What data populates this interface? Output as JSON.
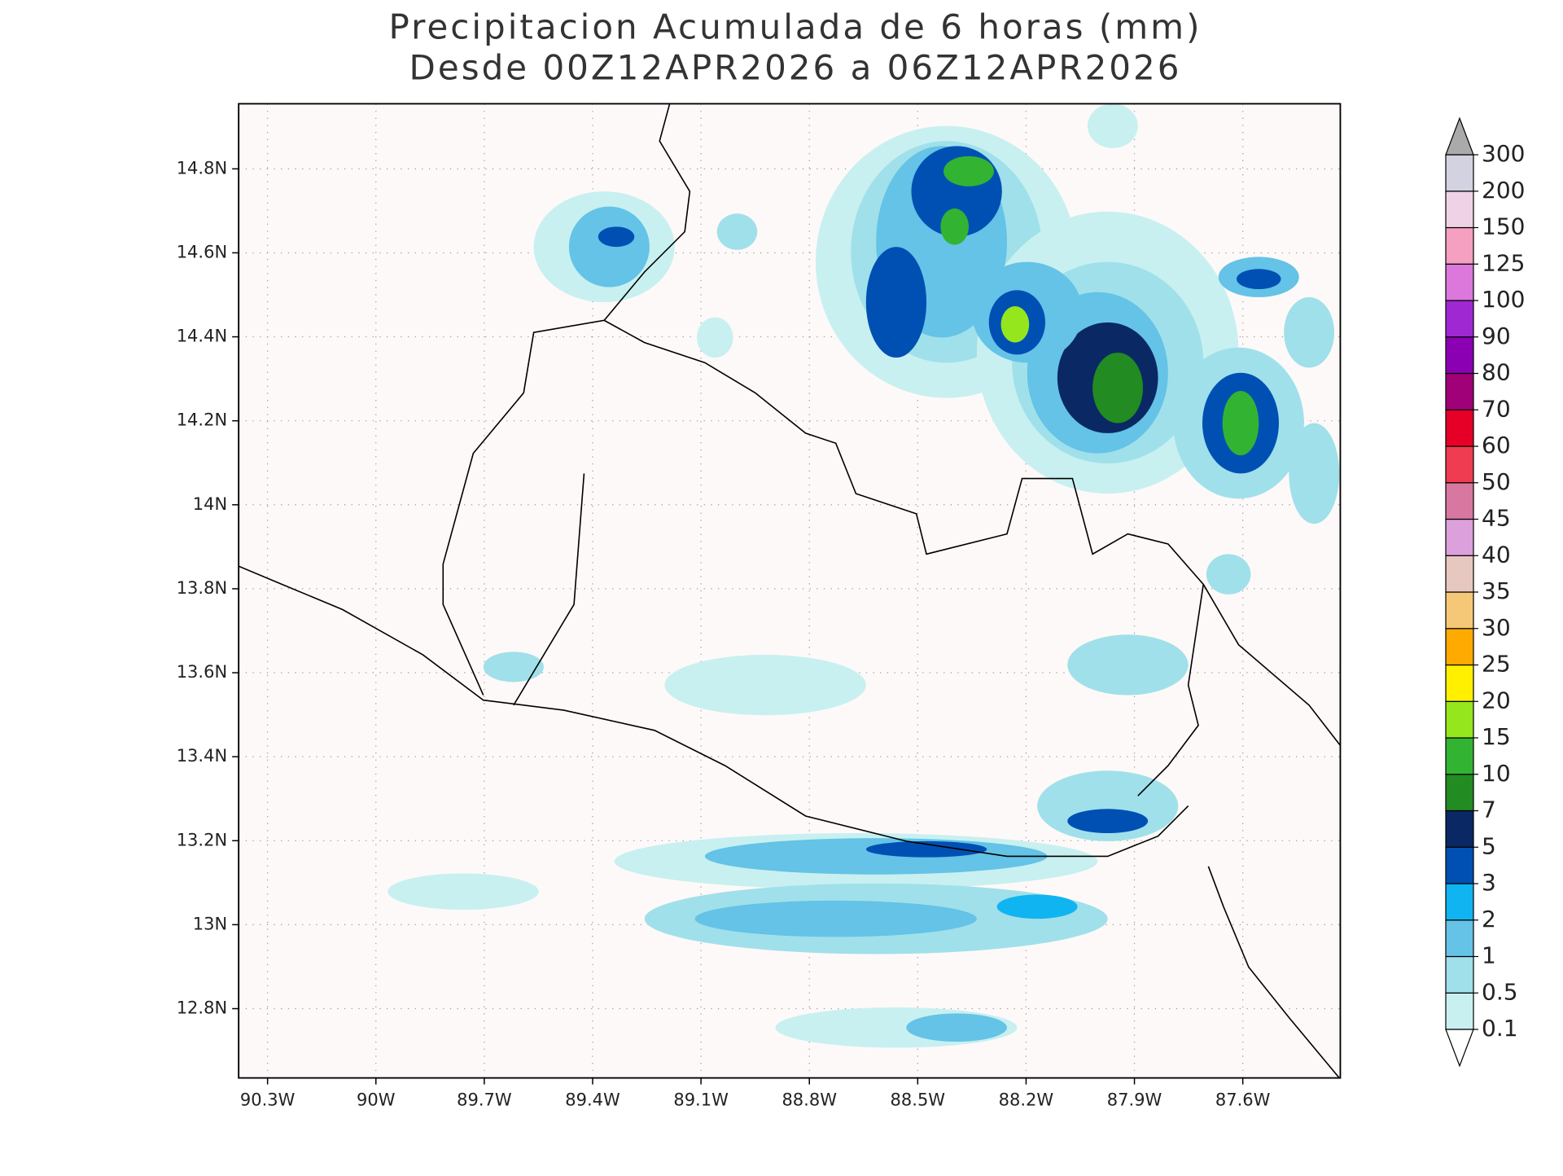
{
  "map": {
    "title": "Precipitacion Acumulada de 6 horas (mm)",
    "subtitle": "Desde 00Z12APR2026 a 06Z12APR2026",
    "lonlim": [
      -90.38,
      -87.33
    ],
    "latlim": [
      12.635,
      14.955
    ],
    "lon_ticks": [
      {
        "value": -90.3,
        "label": "90.3W"
      },
      {
        "value": -90.0,
        "label": "90W"
      },
      {
        "value": -89.7,
        "label": "89.7W"
      },
      {
        "value": -89.4,
        "label": "89.4W"
      },
      {
        "value": -89.1,
        "label": "89.1W"
      },
      {
        "value": -88.8,
        "label": "88.8W"
      },
      {
        "value": -88.5,
        "label": "88.5W"
      },
      {
        "value": -88.2,
        "label": "88.2W"
      },
      {
        "value": -87.9,
        "label": "87.9W"
      },
      {
        "value": -87.6,
        "label": "87.6W"
      }
    ],
    "lat_ticks": [
      {
        "value": 12.8,
        "label": "12.8N"
      },
      {
        "value": 13.0,
        "label": "13N"
      },
      {
        "value": 13.2,
        "label": "13.2N"
      },
      {
        "value": 13.4,
        "label": "13.4N"
      },
      {
        "value": 13.6,
        "label": "13.6N"
      },
      {
        "value": 13.8,
        "label": "13.8N"
      },
      {
        "value": 14.0,
        "label": "14N"
      },
      {
        "value": 14.2,
        "label": "14.2N"
      },
      {
        "value": 14.4,
        "label": "14.4N"
      },
      {
        "value": 14.6,
        "label": "14.6N"
      },
      {
        "value": 14.8,
        "label": "14.8N"
      }
    ],
    "grid": true,
    "colorbar": {
      "levels": [
        0.1,
        0.5,
        1,
        2,
        3,
        5,
        7,
        10,
        15,
        20,
        25,
        30,
        35,
        40,
        45,
        50,
        60,
        70,
        80,
        90,
        100,
        125,
        150,
        200,
        300
      ],
      "colors": [
        "#c8f0f0",
        "#a0e0ea",
        "#64c3e6",
        "#10b4f0",
        "#0050b4",
        "#0a2864",
        "#228b22",
        "#32b432",
        "#96e61e",
        "#fff000",
        "#ffaa00",
        "#f5c878",
        "#e6c8c0",
        "#dca0dc",
        "#d878a0",
        "#f03c50",
        "#e60028",
        "#a00078",
        "#8c00b4",
        "#a028d2",
        "#dc78dc",
        "#f5a0c0",
        "#f0d2e6",
        "#d2d2e1"
      ],
      "under_color": "#ffffff",
      "over_color": "#aaaaaa"
    }
  }
}
